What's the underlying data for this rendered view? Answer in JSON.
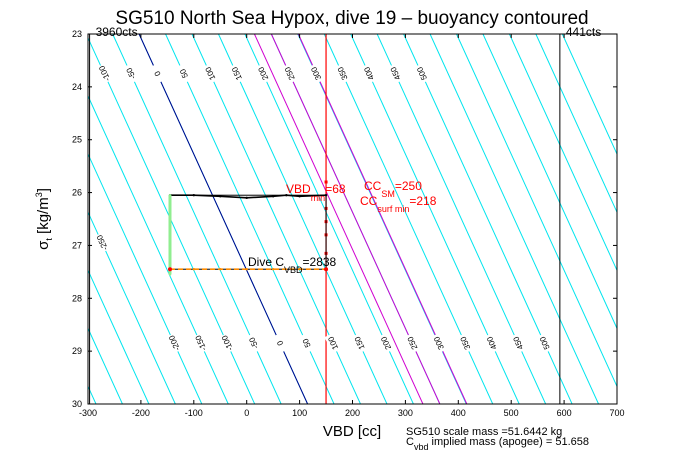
{
  "chart_data": {
    "type": "line",
    "title": "SG510 North Sea Hypox, dive 19 – buoyancy contoured",
    "xlabel": "VBD [cc]",
    "ylabel": "σt [kg/m3]",
    "xlim": [
      -300,
      700
    ],
    "ylim": [
      30,
      23
    ],
    "xticks": [
      -300,
      -200,
      -100,
      0,
      100,
      200,
      300,
      400,
      500,
      600,
      700
    ],
    "yticks": [
      23,
      24,
      25,
      26,
      27,
      28,
      29,
      30
    ],
    "grid": false,
    "contour_spacing": 50,
    "contour_levels": [
      -500,
      -450,
      -400,
      -350,
      -300,
      -250,
      -200,
      -150,
      -100,
      -50,
      0,
      50,
      100,
      150,
      200,
      250,
      300,
      350,
      400,
      450,
      500,
      550,
      600,
      650,
      700,
      750,
      800
    ],
    "contour_labels_top": [
      {
        "level": -450,
        "text": "-450"
      },
      {
        "level": -400,
        "text": "-400"
      },
      {
        "level": -200,
        "text": "-200"
      },
      {
        "level": -150,
        "text": "-150"
      },
      {
        "level": -100,
        "text": "-100"
      },
      {
        "level": -50,
        "text": "-50"
      },
      {
        "level": 0,
        "text": "0"
      },
      {
        "level": 50,
        "text": "50"
      },
      {
        "level": 100,
        "text": "100"
      },
      {
        "level": 150,
        "text": "150"
      },
      {
        "level": 200,
        "text": "200"
      },
      {
        "level": 250,
        "text": "250"
      },
      {
        "level": 300,
        "text": "300"
      },
      {
        "level": 350,
        "text": "350"
      },
      {
        "level": 400,
        "text": "400"
      },
      {
        "level": 450,
        "text": "450"
      },
      {
        "level": 500,
        "text": "500"
      }
    ],
    "contour_labels_left": [
      {
        "level": -400,
        "text": "-400"
      },
      {
        "level": -350,
        "text": "-350"
      },
      {
        "level": -300,
        "text": "-300"
      },
      {
        "level": -250,
        "text": "-250"
      }
    ],
    "contour_labels_bottom": [
      {
        "level": -200,
        "text": "-200"
      },
      {
        "level": -150,
        "text": "-150"
      },
      {
        "level": -100,
        "text": "-100"
      },
      {
        "level": -50,
        "text": "-50"
      },
      {
        "level": 0,
        "text": "0"
      },
      {
        "level": 50,
        "text": "50"
      },
      {
        "level": 100,
        "text": "100"
      },
      {
        "level": 150,
        "text": "150"
      },
      {
        "level": 200,
        "text": "200"
      },
      {
        "level": 250,
        "text": "250"
      },
      {
        "level": 300,
        "text": "300"
      },
      {
        "level": 350,
        "text": "350"
      },
      {
        "level": 400,
        "text": "400"
      },
      {
        "level": 450,
        "text": "450"
      },
      {
        "level": 500,
        "text": "500"
      }
    ],
    "special_contours": [
      {
        "name": "zero",
        "level": 0,
        "color": "#00008b"
      },
      {
        "name": "ccsm",
        "level": 250,
        "color": "#d000d0"
      },
      {
        "name": "ccsurfmin",
        "level": 218,
        "color": "#d000d0"
      },
      {
        "name": "dive-cvbd",
        "level": 301,
        "color": "#d000d0"
      }
    ],
    "vlines": [
      {
        "name": "counts-3960",
        "x": -297,
        "label": "3960cts",
        "color": "#000000"
      },
      {
        "name": "counts-441",
        "x": 592,
        "label": "441cts",
        "color": "#000000"
      },
      {
        "name": "vbd-max-cc",
        "x": 150,
        "color": "#ff0000"
      }
    ],
    "box": {
      "x0": -145,
      "x1": 150,
      "y_top": 26.05,
      "y_bottom": 27.45
    },
    "series": [
      {
        "color": "#000000",
        "x": [
          -145,
          -100,
          -50,
          0,
          50,
          75,
          100,
          150
        ],
        "y": [
          26.05,
          26.05,
          26.07,
          26.1,
          26.07,
          26.05,
          26.07,
          26.05
        ]
      },
      {
        "color": "#90ee90",
        "x": [
          -145,
          -145
        ],
        "y": [
          26.05,
          27.55
        ]
      },
      {
        "color": "#ff8c00",
        "x": [
          -145,
          -100,
          -50,
          0,
          50,
          100,
          150
        ],
        "y": [
          27.45,
          27.45,
          27.45,
          27.45,
          27.45,
          27.45,
          27.45
        ]
      }
    ],
    "annotations": {
      "vbd": {
        "main": "VBD",
        "sub": "min",
        "value": "=68"
      },
      "ccsm": {
        "main": "CC",
        "sub": "SM",
        "value": "=250"
      },
      "ccsurf": {
        "main": "CC",
        "sub": "surf min",
        "value": "=218"
      },
      "dive": {
        "main": "Dive C",
        "sub": "VBD",
        "value": "=2838"
      }
    },
    "footer": {
      "line1": "SG510 scale mass =51.6442 kg",
      "line2_main": "C",
      "line2_sub": "vbd",
      "line2_rest": "  implied mass (apogee) = 51.658"
    }
  }
}
